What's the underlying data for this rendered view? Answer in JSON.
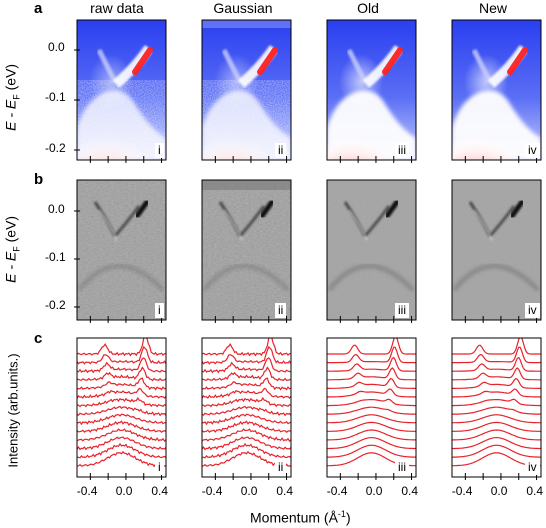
{
  "rows": [
    {
      "label": "a",
      "ylabel_main": "E - E",
      "ylabel_sub": "F",
      "ylabel_unit": " (eV)"
    },
    {
      "label": "b",
      "ylabel_main": "E - E",
      "ylabel_sub": "F",
      "ylabel_unit": " (eV)"
    },
    {
      "label": "c",
      "ylabel": "Intensity (arb.units.)"
    }
  ],
  "columns": [
    "raw data",
    "Gaussian",
    "Old",
    "New"
  ],
  "panel_ids": [
    "i",
    "ii",
    "iii",
    "iv"
  ],
  "y_ticks": [
    "0.0",
    "-0.1",
    "-0.2"
  ],
  "x_ticks": [
    "-0.4",
    "0.0",
    "0.4"
  ],
  "x_tick_mid": [
    "0.0"
  ],
  "x_ticks_first_col": [
    "-0.4",
    "-0.2",
    "0.0",
    "0.2",
    "0.4"
  ],
  "xlabel": "Momentum (Å",
  "xlabel_sup": "-1",
  "xlabel_end": ")",
  "chart_data": {
    "type": "line",
    "title": "",
    "xlabel": "Momentum (Å-1)",
    "ylabel": "Intensity (arb.units.)",
    "xlim": [
      -0.55,
      0.45
    ],
    "x_ticks": [
      -0.4,
      -0.2,
      0.0,
      0.2,
      0.4
    ],
    "panels": [
      "raw data",
      "Gaussian",
      "Old",
      "New"
    ],
    "n_curves_per_panel": 14,
    "series_color": "#e8222a"
  },
  "colors": {
    "map_blue": "#1e3cf0",
    "map_white": "#ffffff",
    "map_red": "#ff2a2a",
    "curve_red": "#e8222a"
  }
}
